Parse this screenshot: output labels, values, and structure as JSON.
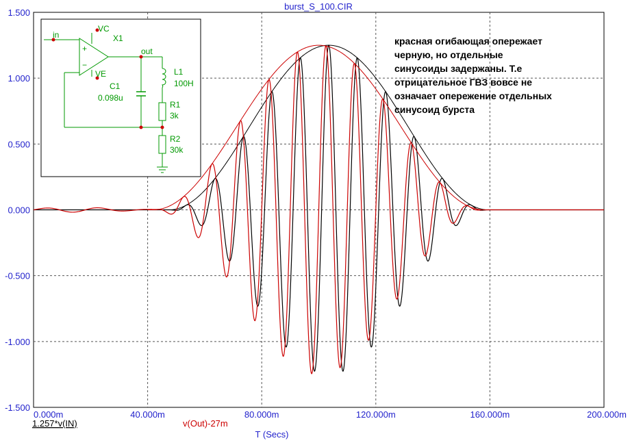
{
  "title": "burst_S_100.CIR",
  "annotation": "красная огибающая опережает\nчерную, но отдельные\nсинусоиды задержаны. Т.е\nотрицательное ГВЗ вовсе не\nозначает опережение отдельных\nсинусоид бурста",
  "schematic": {
    "in": "in",
    "vc": "VC",
    "ve": "VE",
    "x1": "X1",
    "out": "out",
    "l1": "L1",
    "l1_value": "100H",
    "c1": "C1",
    "c1_value": "0.098u",
    "r1": "R1",
    "r1_value": "3k",
    "r2": "R2",
    "r2_value": "30k",
    "plus": "+",
    "minus": "−"
  },
  "colors": {
    "axis": "#2222cc",
    "black_trace": "#000000",
    "red_trace": "#cc0000",
    "schematic": "#009900",
    "component_dots": "#cc0000"
  },
  "chart_data": {
    "type": "line",
    "title": "burst_S_100.CIR",
    "xlabel": "T (Secs)",
    "ylabel": "",
    "xlim": [
      0,
      0.2
    ],
    "ylim": [
      -1.5,
      1.5
    ],
    "x_ticks": [
      "0.000m",
      "40.000m",
      "80.000m",
      "120.000m",
      "160.000m",
      "200.000m"
    ],
    "y_ticks": [
      "1.500",
      "1.000",
      "0.500",
      "0.000",
      "-0.500",
      "-1.000",
      "-1.500"
    ],
    "grid": true,
    "series": [
      {
        "name": "1.257*v(IN)",
        "color": "#000000",
        "carrier_frequency_hz": 100,
        "envelope": {
          "peak": 1.25,
          "center_s": 0.1035,
          "half_width_s": 0.056,
          "shape": "raised-cosine",
          "start_s": 0.042,
          "end_s": 0.165
        },
        "peaks": [
          {
            "t": 0.0735,
            "v": 0.56
          },
          {
            "t": 0.0835,
            "v": 0.89
          },
          {
            "t": 0.0935,
            "v": 1.19
          },
          {
            "t": 0.1035,
            "v": 1.25
          },
          {
            "t": 0.1135,
            "v": 1.05
          },
          {
            "t": 0.1235,
            "v": 0.7
          },
          {
            "t": 0.1335,
            "v": 0.38
          }
        ],
        "troughs": [
          {
            "t": 0.0785,
            "v": -0.72
          },
          {
            "t": 0.0885,
            "v": -1.08
          },
          {
            "t": 0.0985,
            "v": -1.25
          },
          {
            "t": 0.1085,
            "v": -1.18
          },
          {
            "t": 0.1185,
            "v": -0.89
          },
          {
            "t": 0.1285,
            "v": -0.55
          }
        ]
      },
      {
        "name": "v(Out)-27m",
        "color": "#cc0000",
        "carrier_frequency_hz": 100,
        "envelope": {
          "peak": 1.25,
          "center_s": 0.1,
          "half_width_s": 0.058,
          "shape": "raised-cosine",
          "start_s": 0.04,
          "end_s": 0.16
        },
        "peaks": [
          {
            "t": 0.0725,
            "v": 0.6
          },
          {
            "t": 0.0825,
            "v": 0.96
          },
          {
            "t": 0.0925,
            "v": 1.22
          },
          {
            "t": 0.1025,
            "v": 1.24
          },
          {
            "t": 0.1125,
            "v": 1.0
          },
          {
            "t": 0.1225,
            "v": 0.66
          }
        ],
        "troughs": [
          {
            "t": 0.0775,
            "v": -0.8
          },
          {
            "t": 0.0875,
            "v": -1.12
          },
          {
            "t": 0.0975,
            "v": -1.26
          },
          {
            "t": 0.1075,
            "v": -1.1
          },
          {
            "t": 0.1175,
            "v": -0.8
          },
          {
            "t": 0.1275,
            "v": -0.48
          }
        ]
      }
    ]
  }
}
